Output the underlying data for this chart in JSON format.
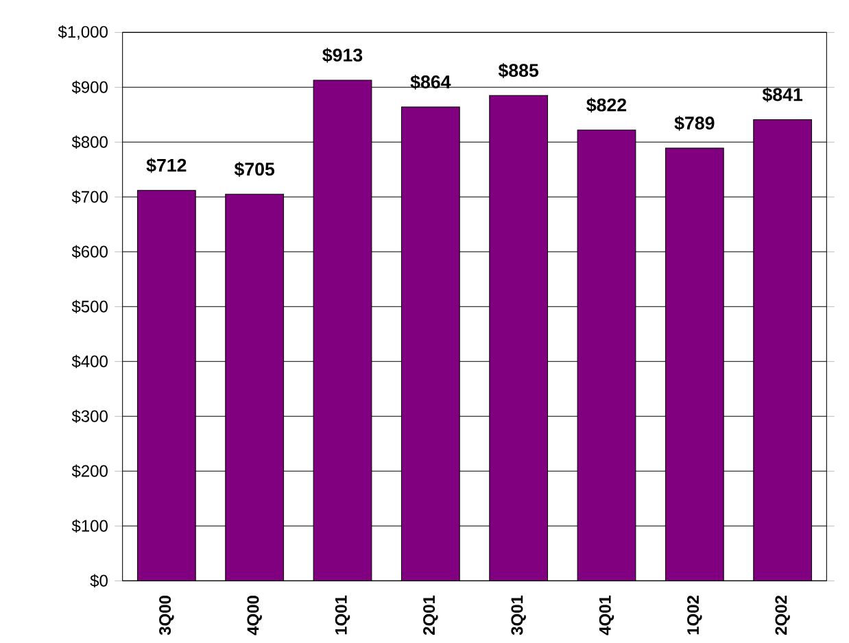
{
  "chart_data": {
    "type": "bar",
    "categories": [
      "3Q00",
      "4Q00",
      "1Q01",
      "2Q01",
      "3Q01",
      "4Q01",
      "1Q02",
      "2Q02"
    ],
    "values": [
      712,
      705,
      913,
      864,
      885,
      822,
      789,
      841
    ],
    "value_labels": [
      "$712",
      "$705",
      "$913",
      "$864",
      "$885",
      "$822",
      "$789",
      "$841"
    ],
    "color": "#800080",
    "ylim": [
      0,
      1000
    ],
    "yticks": [
      {
        "value": 0,
        "label": "$0"
      },
      {
        "value": 100,
        "label": "$100"
      },
      {
        "value": 200,
        "label": "$200"
      },
      {
        "value": 300,
        "label": "$300"
      },
      {
        "value": 400,
        "label": "$400"
      },
      {
        "value": 500,
        "label": "$500"
      },
      {
        "value": 600,
        "label": "$600"
      },
      {
        "value": 700,
        "label": "$700"
      },
      {
        "value": 800,
        "label": "$800"
      },
      {
        "value": 900,
        "label": "$900"
      },
      {
        "value": 1000,
        "label": "$1,000"
      }
    ],
    "grid": "y"
  }
}
